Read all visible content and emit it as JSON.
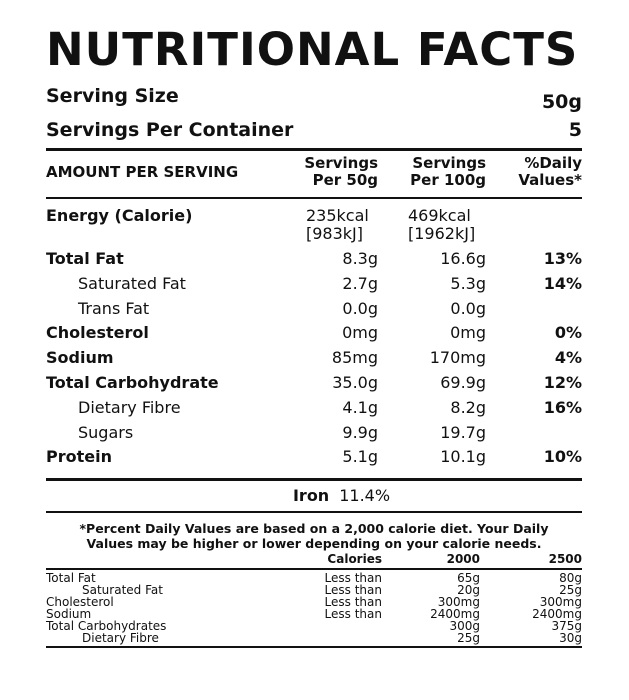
{
  "title": "NUTRITIONAL FACTS",
  "serving_size_label": "Serving Size",
  "serving_size_value": "50g",
  "servings_per_container_label": "Servings Per Container",
  "servings_per_container_value": "5",
  "header": {
    "amount": "AMOUNT PER SERVING",
    "col1_line1": "Servings",
    "col1_line2": "Per 50g",
    "col2_line1": "Servings",
    "col2_line2": "Per 100g",
    "col3_line1": "%Daily",
    "col3_line2": "Values*"
  },
  "energy": {
    "label": "Energy (Calorie)",
    "v50_kcal": "235kcal",
    "v50_kj": "[983kJ]",
    "v100_kcal": "469kcal",
    "v100_kj": "[1962kJ]"
  },
  "rows": [
    {
      "label": "Total Fat",
      "v50": "8.3g",
      "v100": "16.6g",
      "dv": "13%"
    },
    {
      "label": "Saturated Fat",
      "v50": "2.7g",
      "v100": "5.3g",
      "dv": "14%"
    },
    {
      "label": "Trans Fat",
      "v50": "0.0g",
      "v100": "0.0g",
      "dv": ""
    },
    {
      "label": "Cholesterol",
      "v50": "0mg",
      "v100": "0mg",
      "dv": "0%"
    },
    {
      "label": "Sodium",
      "v50": "85mg",
      "v100": "170mg",
      "dv": "4%"
    },
    {
      "label": "Total Carbohydrate",
      "v50": "35.0g",
      "v100": "69.9g",
      "dv": "12%"
    },
    {
      "label": "Dietary Fibre",
      "v50": "4.1g",
      "v100": "8.2g",
      "dv": "16%"
    },
    {
      "label": "Sugars",
      "v50": "9.9g",
      "v100": "19.7g",
      "dv": ""
    },
    {
      "label": "Protein",
      "v50": "5.1g",
      "v100": "10.1g",
      "dv": "10%"
    }
  ],
  "iron": {
    "label": "Iron",
    "value": "11.4%"
  },
  "footnote_line1": "*Percent Daily Values are based on a 2,000 calorie diet. Your Daily",
  "footnote_line2": "Values may be higher or lower depending on your calorie needs.",
  "ref_header": {
    "c0": "",
    "c1": "Calories",
    "c2": "2000",
    "c3": "2500"
  },
  "ref_rows": [
    {
      "label": "Total Fat",
      "limit": "Less than",
      "v2000": "65g",
      "v2500": "80g"
    },
    {
      "label": "Saturated Fat",
      "limit": "Less than",
      "v2000": "20g",
      "v2500": "25g"
    },
    {
      "label": "Cholesterol",
      "limit": "Less than",
      "v2000": "300mg",
      "v2500": "300mg"
    },
    {
      "label": "Sodium",
      "limit": "Less than",
      "v2000": "2400mg",
      "v2500": "2400mg"
    },
    {
      "label": "Total Carbohydrates",
      "limit": "",
      "v2000": "300g",
      "v2500": "375g"
    },
    {
      "label": "Dietary Fibre",
      "limit": "",
      "v2000": "25g",
      "v2500": "30g"
    }
  ]
}
